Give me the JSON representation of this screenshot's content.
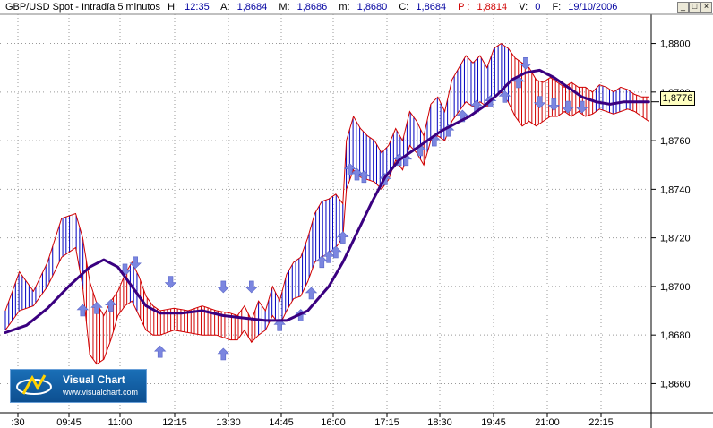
{
  "header": {
    "symbol": "GBP/USD Spot - Intradía 5 minutos",
    "h_label": "H:",
    "h_value": "12:35",
    "a_label": "A:",
    "a_value": "1,8684",
    "m_label": "M:",
    "m_value": "1,8686",
    "mn_label": "m:",
    "mn_value": "1,8680",
    "c_label": "C:",
    "c_value": "1,8684",
    "p_label": "P :",
    "p_value": "1,8814",
    "v_label": "V:",
    "v_value": "0",
    "f_label": "F:",
    "f_value": "19/10/2006"
  },
  "window_buttons": {
    "minimize": "_",
    "maximize": "□",
    "close": "×"
  },
  "logo": {
    "name": "Visual Chart",
    "url": "www.visualchart.com"
  },
  "last_price": "1,8776",
  "colors": {
    "bull_bars": "#0000c0",
    "bear_bars": "#d00000",
    "arrows": "#7b86e0",
    "average": "#3a0080"
  },
  "chart_data": {
    "type": "line",
    "x_tick_labels": [
      ":30",
      "09:45",
      "11:00",
      "12:15",
      "13:30",
      "14:45",
      "16:00",
      "17:15",
      "18:30",
      "19:45",
      "21:00",
      "22:15"
    ],
    "y_tick_labels": [
      "1,8660",
      "1,8680",
      "1,8700",
      "1,8720",
      "1,8740",
      "1,8760",
      "1,8780",
      "1,8800"
    ],
    "y_ticks": [
      1.866,
      1.868,
      1.87,
      1.872,
      1.874,
      1.876,
      1.878,
      1.88
    ],
    "ylim": [
      1.8648,
      1.8812
    ],
    "xlim": [
      0,
      100
    ],
    "grid": true,
    "price_upper": [
      [
        0,
        1.869
      ],
      [
        2,
        1.8706
      ],
      [
        4,
        1.8698
      ],
      [
        6,
        1.871
      ],
      [
        8,
        1.8728
      ],
      [
        10,
        1.873
      ],
      [
        11,
        1.872
      ],
      [
        12,
        1.8702
      ],
      [
        13,
        1.8693
      ],
      [
        14,
        1.8688
      ],
      [
        15,
        1.8694
      ],
      [
        16,
        1.8698
      ],
      [
        17,
        1.8705
      ],
      [
        18,
        1.871
      ],
      [
        19,
        1.8704
      ],
      [
        20,
        1.8696
      ],
      [
        21,
        1.8692
      ],
      [
        22,
        1.869
      ],
      [
        24,
        1.8691
      ],
      [
        26,
        1.869
      ],
      [
        28,
        1.8692
      ],
      [
        30,
        1.869
      ],
      [
        32,
        1.8689
      ],
      [
        33,
        1.8688
      ],
      [
        34,
        1.8692
      ],
      [
        35,
        1.8686
      ],
      [
        36,
        1.8694
      ],
      [
        37,
        1.869
      ],
      [
        38,
        1.87
      ],
      [
        39,
        1.8694
      ],
      [
        40,
        1.8705
      ],
      [
        41,
        1.871
      ],
      [
        42,
        1.8712
      ],
      [
        43,
        1.872
      ],
      [
        44,
        1.873
      ],
      [
        45,
        1.8735
      ],
      [
        46,
        1.8736
      ],
      [
        47,
        1.8738
      ],
      [
        48,
        1.8734
      ],
      [
        48.5,
        1.876
      ],
      [
        49.5,
        1.877
      ],
      [
        50.5,
        1.8765
      ],
      [
        51.5,
        1.8762
      ],
      [
        52.5,
        1.876
      ],
      [
        53.5,
        1.8755
      ],
      [
        54.5,
        1.8758
      ],
      [
        55.5,
        1.8765
      ],
      [
        56.5,
        1.876
      ],
      [
        57.5,
        1.8772
      ],
      [
        58.5,
        1.8768
      ],
      [
        59.5,
        1.8762
      ],
      [
        60.5,
        1.8775
      ],
      [
        61.5,
        1.8778
      ],
      [
        62.5,
        1.8772
      ],
      [
        63.5,
        1.8785
      ],
      [
        64.5,
        1.879
      ],
      [
        65.5,
        1.8795
      ],
      [
        66.5,
        1.8792
      ],
      [
        67.5,
        1.8795
      ],
      [
        68.5,
        1.879
      ],
      [
        69.5,
        1.8798
      ],
      [
        70.5,
        1.88
      ],
      [
        71.5,
        1.8798
      ],
      [
        72.5,
        1.8794
      ],
      [
        73.5,
        1.8792
      ],
      [
        74.5,
        1.879
      ],
      [
        75.5,
        1.8785
      ],
      [
        76.5,
        1.8784
      ],
      [
        77.5,
        1.8786
      ],
      [
        78.5,
        1.8784
      ],
      [
        79.5,
        1.8782
      ],
      [
        80.5,
        1.8784
      ],
      [
        81.5,
        1.8782
      ],
      [
        82.5,
        1.8782
      ],
      [
        83.5,
        1.878
      ],
      [
        84.5,
        1.8783
      ],
      [
        85.5,
        1.8782
      ],
      [
        86.5,
        1.878
      ],
      [
        87.5,
        1.8782
      ],
      [
        88.5,
        1.8781
      ],
      [
        89.5,
        1.8779
      ],
      [
        90.5,
        1.8778
      ],
      [
        91.5,
        1.8778
      ]
    ],
    "price_lower": [
      [
        0,
        1.8682
      ],
      [
        2,
        1.869
      ],
      [
        4,
        1.8692
      ],
      [
        6,
        1.87
      ],
      [
        8,
        1.8712
      ],
      [
        10,
        1.8716
      ],
      [
        11,
        1.87
      ],
      [
        12,
        1.8672
      ],
      [
        13,
        1.8668
      ],
      [
        14,
        1.867
      ],
      [
        15,
        1.8678
      ],
      [
        16,
        1.8688
      ],
      [
        17,
        1.8692
      ],
      [
        18,
        1.8694
      ],
      [
        19,
        1.8688
      ],
      [
        20,
        1.8682
      ],
      [
        21,
        1.868
      ],
      [
        22,
        1.868
      ],
      [
        24,
        1.8682
      ],
      [
        26,
        1.8681
      ],
      [
        28,
        1.868
      ],
      [
        30,
        1.868
      ],
      [
        32,
        1.8678
      ],
      [
        33,
        1.8678
      ],
      [
        34,
        1.8682
      ],
      [
        35,
        1.8677
      ],
      [
        36,
        1.868
      ],
      [
        37,
        1.8682
      ],
      [
        38,
        1.8688
      ],
      [
        39,
        1.8684
      ],
      [
        40,
        1.869
      ],
      [
        41,
        1.8695
      ],
      [
        42,
        1.8696
      ],
      [
        43,
        1.8702
      ],
      [
        44,
        1.871
      ],
      [
        45,
        1.8712
      ],
      [
        46,
        1.8714
      ],
      [
        47,
        1.8716
      ],
      [
        48,
        1.872
      ],
      [
        48.5,
        1.874
      ],
      [
        49.5,
        1.8748
      ],
      [
        50.5,
        1.8745
      ],
      [
        51.5,
        1.8744
      ],
      [
        52.5,
        1.8743
      ],
      [
        53.5,
        1.874
      ],
      [
        54.5,
        1.8744
      ],
      [
        55.5,
        1.8752
      ],
      [
        56.5,
        1.8748
      ],
      [
        57.5,
        1.8758
      ],
      [
        58.5,
        1.8755
      ],
      [
        59.5,
        1.875
      ],
      [
        60.5,
        1.876
      ],
      [
        61.5,
        1.8762
      ],
      [
        62.5,
        1.876
      ],
      [
        63.5,
        1.8768
      ],
      [
        64.5,
        1.8772
      ],
      [
        65.5,
        1.8776
      ],
      [
        66.5,
        1.8774
      ],
      [
        67.5,
        1.8776
      ],
      [
        68.5,
        1.8774
      ],
      [
        69.5,
        1.8778
      ],
      [
        70.5,
        1.878
      ],
      [
        71.5,
        1.8776
      ],
      [
        72.5,
        1.877
      ],
      [
        73.5,
        1.8766
      ],
      [
        74.5,
        1.8768
      ],
      [
        75.5,
        1.8766
      ],
      [
        76.5,
        1.8768
      ],
      [
        77.5,
        1.877
      ],
      [
        78.5,
        1.877
      ],
      [
        79.5,
        1.8772
      ],
      [
        80.5,
        1.877
      ],
      [
        81.5,
        1.8772
      ],
      [
        82.5,
        1.877
      ],
      [
        83.5,
        1.8771
      ],
      [
        84.5,
        1.8773
      ],
      [
        85.5,
        1.8772
      ],
      [
        86.5,
        1.8771
      ],
      [
        87.5,
        1.8772
      ],
      [
        88.5,
        1.8773
      ],
      [
        89.5,
        1.8772
      ],
      [
        90.5,
        1.877
      ],
      [
        91.5,
        1.8768
      ]
    ],
    "moving_average": [
      [
        0,
        1.8681
      ],
      [
        3,
        1.8684
      ],
      [
        6,
        1.8691
      ],
      [
        9,
        1.87
      ],
      [
        12,
        1.8708
      ],
      [
        14,
        1.8711
      ],
      [
        16,
        1.8708
      ],
      [
        18,
        1.87
      ],
      [
        20,
        1.8692
      ],
      [
        22,
        1.8689
      ],
      [
        25,
        1.8689
      ],
      [
        28,
        1.869
      ],
      [
        31,
        1.8688
      ],
      [
        34,
        1.8687
      ],
      [
        37,
        1.8686
      ],
      [
        40,
        1.8686
      ],
      [
        43,
        1.869
      ],
      [
        46,
        1.87
      ],
      [
        48,
        1.871
      ],
      [
        50,
        1.8722
      ],
      [
        52,
        1.8734
      ],
      [
        54,
        1.8745
      ],
      [
        56,
        1.8752
      ],
      [
        58,
        1.8756
      ],
      [
        60,
        1.876
      ],
      [
        62,
        1.8764
      ],
      [
        64,
        1.8767
      ],
      [
        66,
        1.877
      ],
      [
        68,
        1.8774
      ],
      [
        70,
        1.8779
      ],
      [
        72,
        1.8785
      ],
      [
        74,
        1.8788
      ],
      [
        76,
        1.8789
      ],
      [
        78,
        1.8786
      ],
      [
        80,
        1.8782
      ],
      [
        82,
        1.8778
      ],
      [
        84,
        1.8776
      ],
      [
        86,
        1.8775
      ],
      [
        88,
        1.8776
      ],
      [
        90,
        1.8776
      ],
      [
        91.5,
        1.8776
      ]
    ],
    "arrows_up": [
      [
        11,
        1.869
      ],
      [
        13,
        1.8691
      ],
      [
        15,
        1.8692
      ],
      [
        22,
        1.8673
      ],
      [
        31,
        1.8672
      ],
      [
        39,
        1.8684
      ],
      [
        42,
        1.8688
      ],
      [
        43.5,
        1.8697
      ],
      [
        45,
        1.871
      ],
      [
        46,
        1.8712
      ],
      [
        47,
        1.8714
      ],
      [
        48,
        1.872
      ],
      [
        49,
        1.8748
      ],
      [
        50,
        1.8746
      ],
      [
        51,
        1.8745
      ],
      [
        54,
        1.8744
      ],
      [
        56,
        1.8752
      ],
      [
        57,
        1.8752
      ],
      [
        59,
        1.8756
      ],
      [
        61,
        1.876
      ],
      [
        63,
        1.8764
      ],
      [
        65,
        1.877
      ],
      [
        67,
        1.8774
      ],
      [
        69,
        1.8776
      ],
      [
        71,
        1.8778
      ],
      [
        73,
        1.8784
      ]
    ],
    "arrows_down": [
      [
        17,
        1.8707
      ],
      [
        18.5,
        1.871
      ],
      [
        23.5,
        1.8702
      ],
      [
        31,
        1.87
      ],
      [
        35,
        1.87
      ],
      [
        74,
        1.8792
      ],
      [
        76,
        1.8776
      ],
      [
        78,
        1.8775
      ],
      [
        80,
        1.8774
      ],
      [
        82,
        1.8774
      ]
    ]
  }
}
